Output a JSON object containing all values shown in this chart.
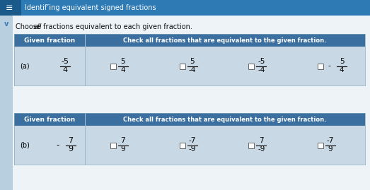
{
  "title": "Identif’ing equivalent signed fractions",
  "subtitle_parts": [
    [
      "Choose ",
      false
    ],
    [
      "all",
      true
    ],
    [
      " fractions equivalent to each given fraction.",
      false
    ]
  ],
  "header_col1": "Given fraction",
  "header_col2": "Check all fractions that are equivalent to the given fraction.",
  "outer_bg": "#dce8f0",
  "page_bg": "#edf3f7",
  "title_bar_bg": "#2e7ab5",
  "title_icon_bg": "#1a5a8a",
  "title_color": "#ffffff",
  "header_bg": "#3a6fa0",
  "header_text_color": "#ffffff",
  "cell_bg": "#c8d8e4",
  "cell_bg2": "#d4e2ec",
  "row_text_color": "#000000",
  "subtitle_color": "#111111",
  "chevron_color": "#3a7ab5",
  "row_a_label": "(a)",
  "row_a_given": {
    "num": "-5",
    "den": "4"
  },
  "row_a_fracs": [
    {
      "num": "5",
      "den": "4",
      "pre": ""
    },
    {
      "num": "5",
      "den": "-4",
      "pre": ""
    },
    {
      "num": "-5",
      "den": "-4",
      "pre": ""
    },
    {
      "num": "5",
      "den": "4",
      "pre": "-"
    }
  ],
  "row_b_label": "(b)",
  "row_b_given": {
    "pre": "-",
    "num": "7",
    "den": "9"
  },
  "row_b_fracs": [
    {
      "num": "7",
      "den": "9",
      "pre": ""
    },
    {
      "num": "-7",
      "den": "-9",
      "pre": ""
    },
    {
      "num": "7",
      "den": "-9",
      "pre": ""
    },
    {
      "num": "-7",
      "den": "9",
      "pre": ""
    }
  ]
}
